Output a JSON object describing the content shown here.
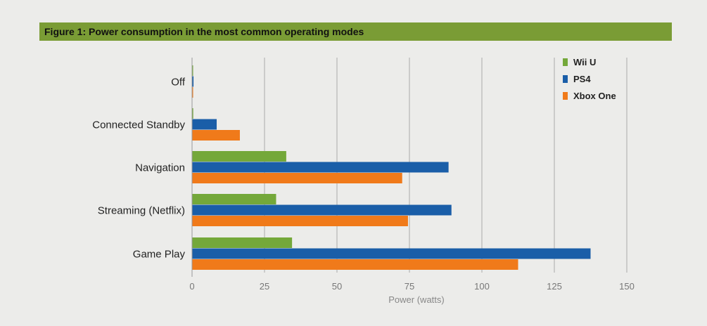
{
  "chart_data": {
    "type": "bar",
    "orientation": "horizontal",
    "title": "Figure 1: Power consumption in the most common operating modes",
    "categories": [
      "Off",
      "Connected Standby",
      "Navigation",
      "Streaming (Netflix)",
      "Game Play"
    ],
    "series": [
      {
        "name": "Wii U",
        "color": "#74a83a",
        "values": [
          0.3,
          0.4,
          32.5,
          29,
          34.5
        ]
      },
      {
        "name": "PS4",
        "color": "#1a5ea8",
        "values": [
          0.5,
          8.5,
          88.5,
          89.5,
          137.5
        ]
      },
      {
        "name": "Xbox One",
        "color": "#f07a1a",
        "values": [
          0.3,
          16.5,
          72.5,
          74.5,
          112.5
        ]
      }
    ],
    "xlabel": "Power (watts)",
    "ylabel": "",
    "xlim": [
      0,
      150
    ],
    "xticks": [
      0,
      25,
      50,
      75,
      100,
      125,
      150
    ],
    "grid": true,
    "legend_position": "top-right",
    "colors": {
      "background": "#ececea",
      "title_bar": "#7a9c35",
      "grid": "#aaaaaa"
    }
  }
}
